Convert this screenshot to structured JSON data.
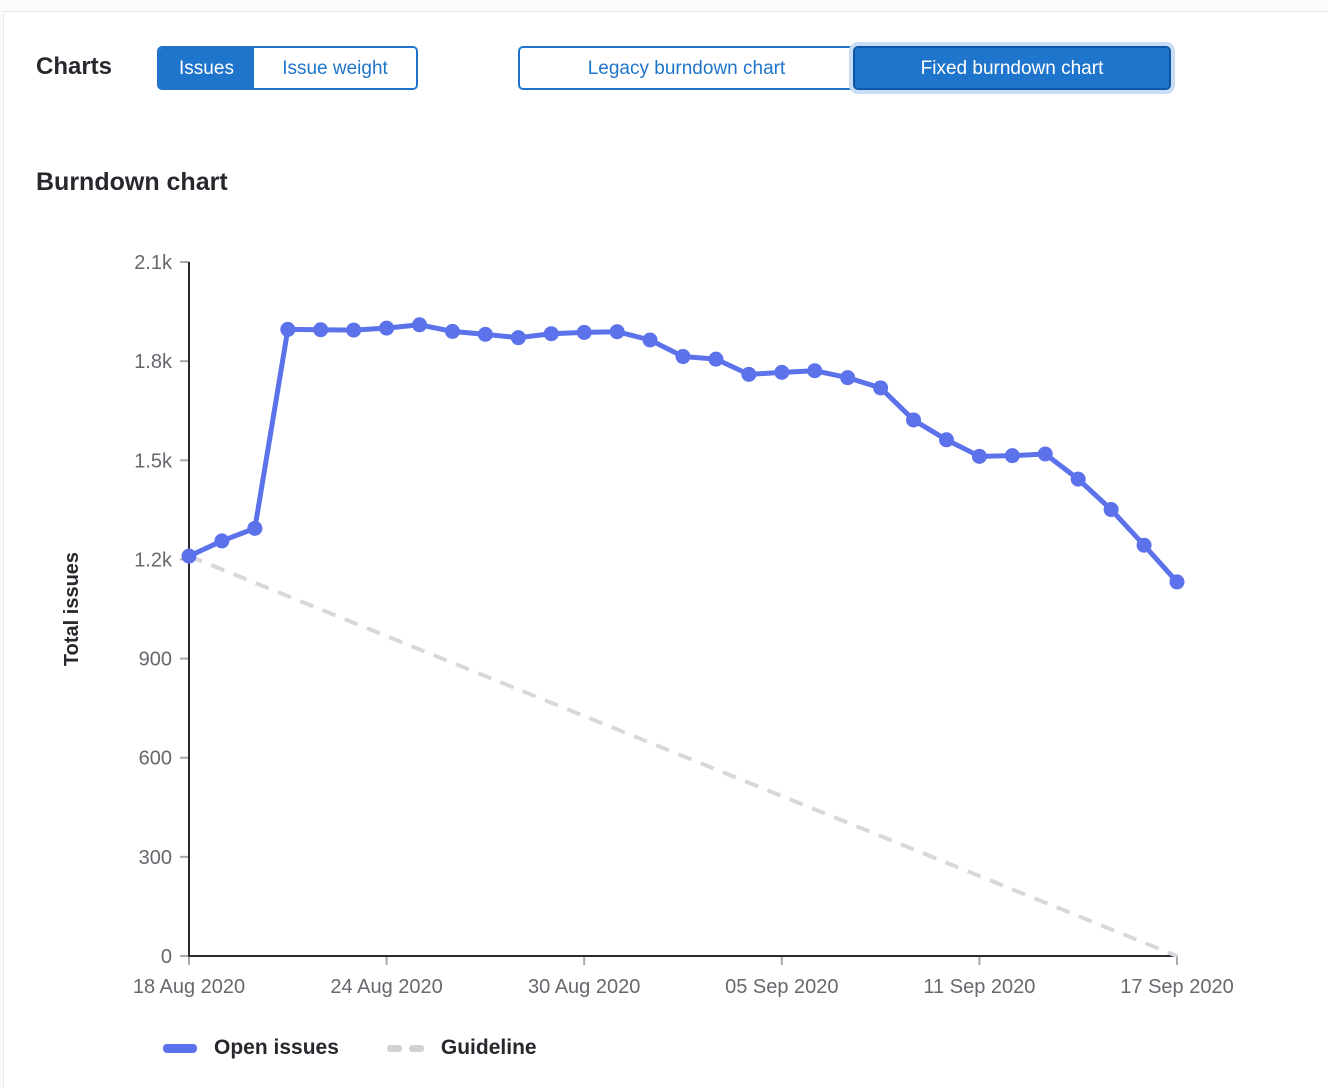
{
  "page": {
    "charts_label": "Charts",
    "section_title": "Burndown chart"
  },
  "toggles": {
    "metric": {
      "items": [
        {
          "label": "Issues",
          "selected": true
        },
        {
          "label": "Issue weight",
          "selected": false
        }
      ]
    },
    "version": {
      "items": [
        {
          "label": "Legacy burndown chart",
          "selected": false
        },
        {
          "label": "Fixed burndown chart",
          "selected": true,
          "focused": true
        }
      ]
    }
  },
  "legend": {
    "items": [
      {
        "label": "Open issues",
        "swatch": "line",
        "color": "#5b72ea"
      },
      {
        "label": "Guideline",
        "swatch": "dashed",
        "color": "#d2d2d6"
      }
    ]
  },
  "colors": {
    "accent_blue": "#1f75cb",
    "selected_border": "#0b57a5",
    "focus_ring": "#c9ddf4",
    "series_line": "#5b72ea",
    "guideline": "#d8d8dc",
    "axis_line": "#2b2a31",
    "tick_mark": "#a8a8ad",
    "tick_label": "#68676e",
    "text": "#28272d"
  },
  "chart_data": {
    "type": "line",
    "title": "Burndown chart",
    "xlabel": "",
    "ylabel": "Total issues",
    "ylim": [
      0,
      2100
    ],
    "y_ticks": [
      0,
      300,
      600,
      900,
      1200,
      1500,
      1800,
      2100
    ],
    "y_tick_labels": [
      "0",
      "300",
      "600",
      "900",
      "1.2k",
      "1.5k",
      "1.8k",
      "2.1k"
    ],
    "x_tick_every": 6,
    "x_tick_labels": [
      "18 Aug 2020",
      "24 Aug 2020",
      "30 Aug 2020",
      "05 Sep 2020",
      "11 Sep 2020",
      "17 Sep 2020"
    ],
    "dates": [
      "18 Aug 2020",
      "19 Aug 2020",
      "20 Aug 2020",
      "21 Aug 2020",
      "22 Aug 2020",
      "23 Aug 2020",
      "24 Aug 2020",
      "25 Aug 2020",
      "26 Aug 2020",
      "27 Aug 2020",
      "28 Aug 2020",
      "29 Aug 2020",
      "30 Aug 2020",
      "31 Aug 2020",
      "01 Sep 2020",
      "02 Sep 2020",
      "03 Sep 2020",
      "04 Sep 2020",
      "05 Sep 2020",
      "06 Sep 2020",
      "07 Sep 2020",
      "08 Sep 2020",
      "09 Sep 2020",
      "10 Sep 2020",
      "11 Sep 2020",
      "12 Sep 2020",
      "13 Sep 2020",
      "14 Sep 2020",
      "15 Sep 2020",
      "16 Sep 2020",
      "17 Sep 2020"
    ],
    "series": [
      {
        "name": "Open issues",
        "color": "#5b72ea",
        "values": [
          1210,
          1256,
          1294,
          1896,
          1895,
          1894,
          1900,
          1910,
          1890,
          1881,
          1871,
          1883,
          1887,
          1889,
          1864,
          1814,
          1806,
          1760,
          1766,
          1771,
          1750,
          1719,
          1622,
          1562,
          1512,
          1514,
          1519,
          1443,
          1351,
          1243,
          1132
        ]
      }
    ],
    "guideline": {
      "name": "Guideline",
      "start": 1210,
      "end": 0,
      "color": "#d8d8dc"
    },
    "grid": false,
    "legend_position": "bottom"
  }
}
